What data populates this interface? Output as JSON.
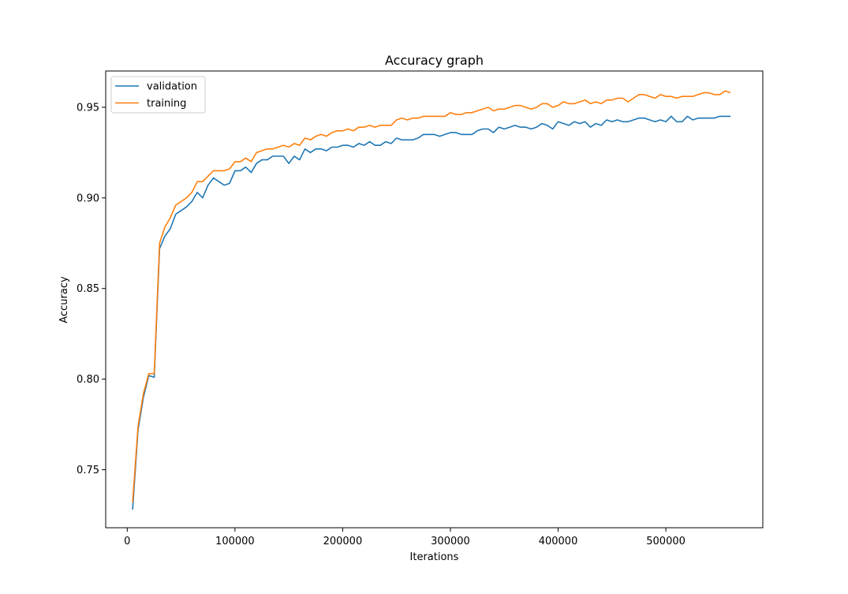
{
  "chart_data": {
    "type": "line",
    "title": "Accuracy graph",
    "xlabel": "Iterations",
    "ylabel": "Accuracy",
    "xlim": [
      -20000,
      590000
    ],
    "ylim": [
      0.718,
      0.97
    ],
    "xticks": [
      0,
      100000,
      200000,
      300000,
      400000,
      500000
    ],
    "xtick_labels": [
      "0",
      "100000",
      "200000",
      "300000",
      "400000",
      "500000"
    ],
    "yticks": [
      0.75,
      0.8,
      0.85,
      0.9,
      0.95
    ],
    "ytick_labels": [
      "0.75",
      "0.80",
      "0.85",
      "0.90",
      "0.95"
    ],
    "grid": false,
    "legend_position": "top-left",
    "x": [
      5000,
      10000,
      15000,
      20000,
      25000,
      30000,
      35000,
      40000,
      45000,
      50000,
      55000,
      60000,
      65000,
      70000,
      75000,
      80000,
      85000,
      90000,
      95000,
      100000,
      105000,
      110000,
      115000,
      120000,
      125000,
      130000,
      135000,
      140000,
      145000,
      150000,
      155000,
      160000,
      165000,
      170000,
      175000,
      180000,
      185000,
      190000,
      195000,
      200000,
      205000,
      210000,
      215000,
      220000,
      225000,
      230000,
      235000,
      240000,
      245000,
      250000,
      255000,
      260000,
      265000,
      270000,
      275000,
      280000,
      285000,
      290000,
      295000,
      300000,
      305000,
      310000,
      315000,
      320000,
      325000,
      330000,
      335000,
      340000,
      345000,
      350000,
      355000,
      360000,
      365000,
      370000,
      375000,
      380000,
      385000,
      390000,
      395000,
      400000,
      405000,
      410000,
      415000,
      420000,
      425000,
      430000,
      435000,
      440000,
      445000,
      450000,
      455000,
      460000,
      465000,
      470000,
      475000,
      480000,
      485000,
      490000,
      495000,
      500000,
      505000,
      510000,
      515000,
      520000,
      525000,
      530000,
      535000,
      540000,
      545000,
      550000,
      555000,
      560000
    ],
    "series": [
      {
        "name": "validation",
        "color": "#1f77b4",
        "values": [
          0.728,
          0.772,
          0.79,
          0.802,
          0.801,
          0.872,
          0.879,
          0.883,
          0.891,
          0.893,
          0.895,
          0.898,
          0.903,
          0.9,
          0.907,
          0.911,
          0.909,
          0.907,
          0.908,
          0.915,
          0.915,
          0.917,
          0.914,
          0.919,
          0.921,
          0.921,
          0.923,
          0.923,
          0.923,
          0.919,
          0.923,
          0.921,
          0.927,
          0.925,
          0.927,
          0.927,
          0.926,
          0.928,
          0.928,
          0.929,
          0.929,
          0.928,
          0.93,
          0.929,
          0.931,
          0.929,
          0.929,
          0.931,
          0.93,
          0.933,
          0.932,
          0.932,
          0.932,
          0.933,
          0.935,
          0.935,
          0.935,
          0.934,
          0.935,
          0.936,
          0.936,
          0.935,
          0.935,
          0.935,
          0.937,
          0.938,
          0.938,
          0.936,
          0.939,
          0.938,
          0.939,
          0.94,
          0.939,
          0.939,
          0.938,
          0.939,
          0.941,
          0.94,
          0.938,
          0.942,
          0.941,
          0.94,
          0.942,
          0.941,
          0.942,
          0.939,
          0.941,
          0.94,
          0.943,
          0.942,
          0.943,
          0.942,
          0.942,
          0.943,
          0.944,
          0.944,
          0.943,
          0.942,
          0.943,
          0.942,
          0.945,
          0.942,
          0.942,
          0.945,
          0.943,
          0.944,
          0.944,
          0.944,
          0.944,
          0.945,
          0.945,
          0.945
        ]
      },
      {
        "name": "training",
        "color": "#ff7f0e",
        "values": [
          0.732,
          0.774,
          0.792,
          0.803,
          0.803,
          0.875,
          0.884,
          0.889,
          0.896,
          0.898,
          0.9,
          0.903,
          0.909,
          0.909,
          0.912,
          0.915,
          0.915,
          0.915,
          0.916,
          0.92,
          0.92,
          0.922,
          0.92,
          0.925,
          0.926,
          0.927,
          0.927,
          0.928,
          0.929,
          0.928,
          0.93,
          0.929,
          0.933,
          0.932,
          0.934,
          0.935,
          0.934,
          0.936,
          0.937,
          0.937,
          0.938,
          0.937,
          0.939,
          0.939,
          0.94,
          0.939,
          0.94,
          0.94,
          0.94,
          0.943,
          0.944,
          0.943,
          0.944,
          0.944,
          0.945,
          0.945,
          0.945,
          0.945,
          0.945,
          0.947,
          0.946,
          0.946,
          0.947,
          0.947,
          0.948,
          0.949,
          0.95,
          0.948,
          0.949,
          0.949,
          0.95,
          0.951,
          0.951,
          0.95,
          0.949,
          0.95,
          0.952,
          0.952,
          0.95,
          0.951,
          0.953,
          0.952,
          0.952,
          0.953,
          0.954,
          0.952,
          0.953,
          0.952,
          0.954,
          0.954,
          0.955,
          0.955,
          0.953,
          0.955,
          0.957,
          0.957,
          0.956,
          0.955,
          0.957,
          0.956,
          0.956,
          0.955,
          0.956,
          0.956,
          0.956,
          0.957,
          0.958,
          0.958,
          0.957,
          0.957,
          0.959,
          0.958
        ]
      }
    ]
  }
}
